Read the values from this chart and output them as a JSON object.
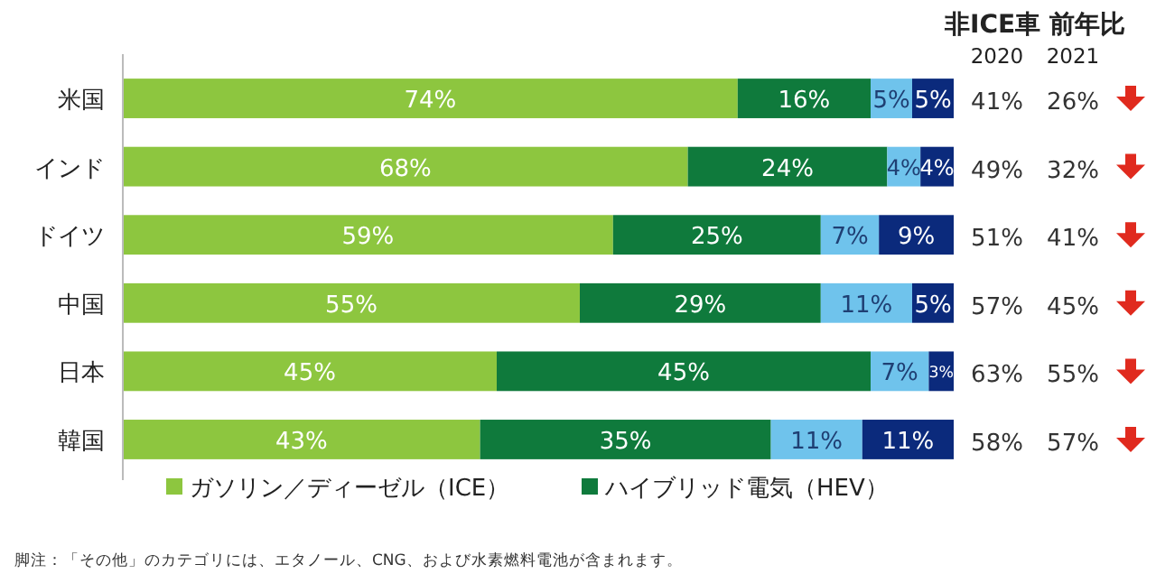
{
  "chart_data": {
    "type": "bar",
    "orientation": "horizontal",
    "stacked": true,
    "legend": "bottom",
    "categories": [
      "米国",
      "インド",
      "ドイツ",
      "中国",
      "日本",
      "韓国"
    ],
    "series": [
      {
        "name": "ガソリン／ディーゼル（ICE）",
        "color": "#8dc63f",
        "values": [
          74,
          68,
          59,
          55,
          45,
          43
        ],
        "value_labels": [
          "74%",
          "68%",
          "59%",
          "55%",
          "45%",
          "43%"
        ]
      },
      {
        "name": "ハイブリッド電気（HEV）",
        "color": "#0f7a3c",
        "values": [
          16,
          24,
          25,
          29,
          45,
          35
        ],
        "value_labels": [
          "16%",
          "24%",
          "25%",
          "29%",
          "45%",
          "35%"
        ]
      },
      {
        "color": "#6fc3ec",
        "values": [
          5,
          4,
          7,
          11,
          7,
          11
        ],
        "value_labels": [
          "5%",
          "4%",
          "7%",
          "11%",
          "7%",
          "11%"
        ]
      },
      {
        "color": "#0b2a7c",
        "values": [
          5,
          4,
          9,
          5,
          3,
          11
        ],
        "value_labels": [
          "5%",
          "4%",
          "9%",
          "5%",
          "3%",
          "11%"
        ]
      }
    ],
    "annotations": [
      "非ICE車 前年比",
      "2020",
      "2021",
      "41%",
      "26%",
      "49%",
      "32%",
      "51%",
      "41%",
      "57%",
      "45%",
      "63%",
      "55%",
      "58%",
      "57%",
      "脚注：「その他」のカテゴリには、エタノール、CNG、および水素燃料電池が含まれます。"
    ]
  }
}
